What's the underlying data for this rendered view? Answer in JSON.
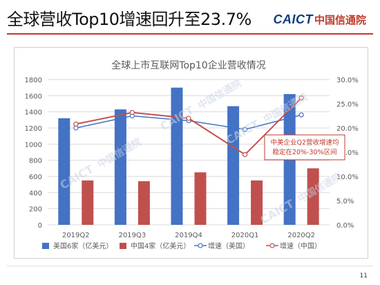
{
  "slide": {
    "title": "全球营收Top10增速回升至23.7%",
    "brand_latin": "CAICT",
    "brand_cn": "中国信通院",
    "page_number": "11",
    "watermark_latin": "CAICT",
    "watermark_cn": "中国信通院"
  },
  "colors": {
    "us_bar": "#4472c4",
    "cn_bar": "#c0504d",
    "us_line": "#4472c4",
    "cn_line": "#c0504d",
    "accent": "#c0392b",
    "brand_blue": "#123c7c"
  },
  "chart_data": {
    "type": "bar",
    "title": "全球上市互联网Top10企业营收情况",
    "categories": [
      "2019Q2",
      "2019Q3",
      "2019Q4",
      "2020Q1",
      "2020Q2"
    ],
    "y_left": {
      "min": 0,
      "max": 1800,
      "ticks": [
        0,
        200,
        400,
        600,
        800,
        1000,
        1200,
        1400,
        1600,
        1800
      ]
    },
    "y_right": {
      "min": 0,
      "max": 0.3,
      "ticks": [
        "0.0%",
        "5.0%",
        "10.0%",
        "15.0%",
        "20.0%",
        "25.0%",
        "30.0%"
      ]
    },
    "series": [
      {
        "name": "美国6家（亿美元）",
        "kind": "bar",
        "axis": "left",
        "color": "#4472c4",
        "values": [
          1320,
          1430,
          1700,
          1470,
          1620
        ]
      },
      {
        "name": "中国4家（亿美元）",
        "kind": "bar",
        "axis": "left",
        "color": "#c0504d",
        "values": [
          550,
          540,
          650,
          550,
          700
        ]
      },
      {
        "name": "增速（美国）",
        "kind": "line",
        "axis": "right",
        "color": "#4472c4",
        "values": [
          0.2,
          0.225,
          0.215,
          0.197,
          0.227
        ]
      },
      {
        "name": "增速（中国）",
        "kind": "line",
        "axis": "right",
        "color": "#c0504d",
        "values": [
          0.208,
          0.232,
          0.22,
          0.145,
          0.262
        ]
      }
    ],
    "annotation": {
      "text_lines": [
        "中美企业Q2营收增速均",
        "稳定在20%-30%区间"
      ],
      "color": "#c0392b"
    },
    "grid": true,
    "legend_position": "bottom"
  }
}
